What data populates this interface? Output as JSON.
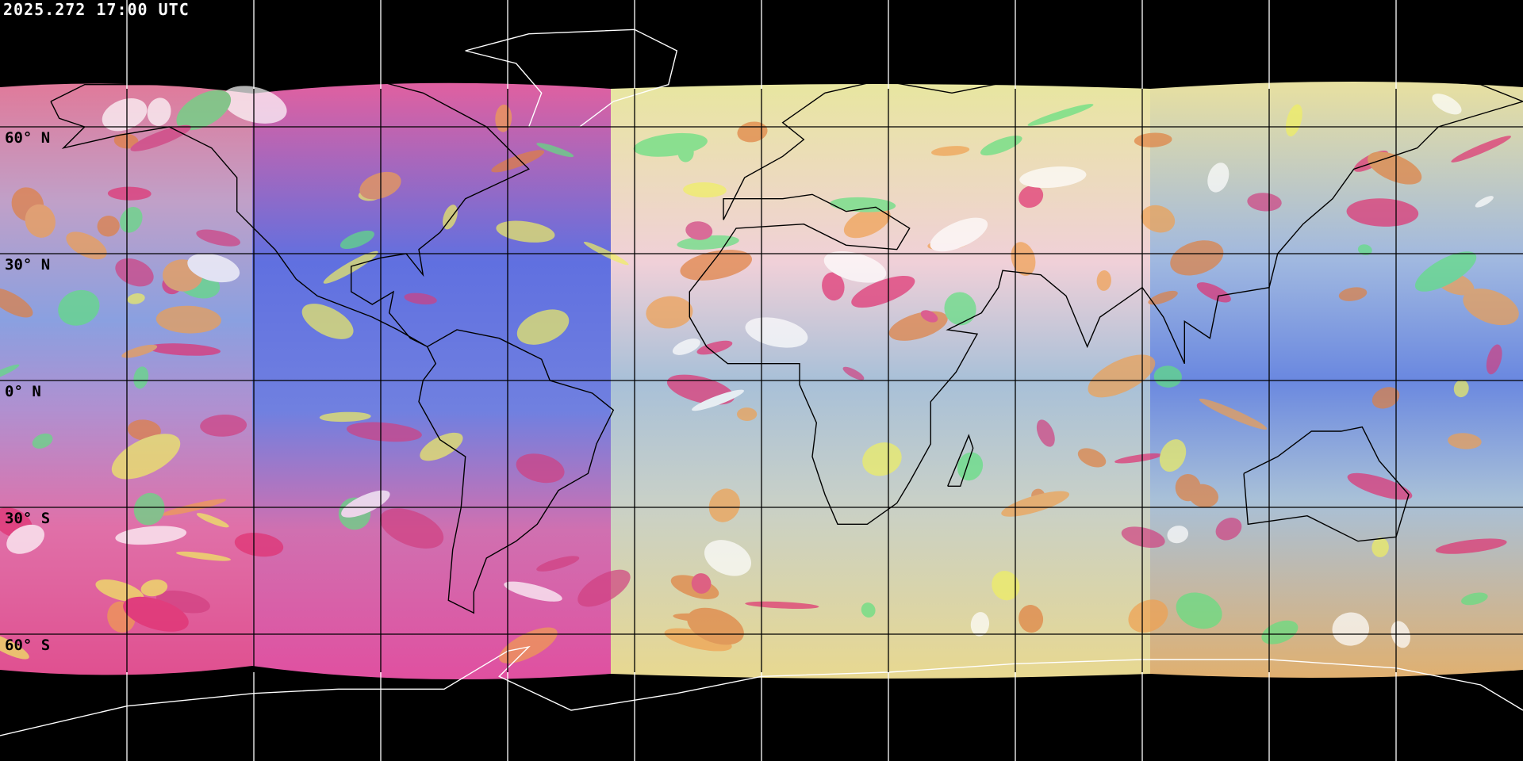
{
  "timestamp": "2025.272 17:00 UTC",
  "projection": "equirectangular",
  "graticule": {
    "lon_step_deg": 30,
    "lat_step_deg": 30,
    "lat_labels": [
      "60° N",
      "30° N",
      "0° N",
      "30° S",
      "60° S"
    ],
    "line_color_space": "#ffffff",
    "line_color_imagery": "#000000"
  },
  "colors": {
    "background": "#000000",
    "coastline_imagery": "#000000",
    "coastline_polar": "#ffffff"
  }
}
